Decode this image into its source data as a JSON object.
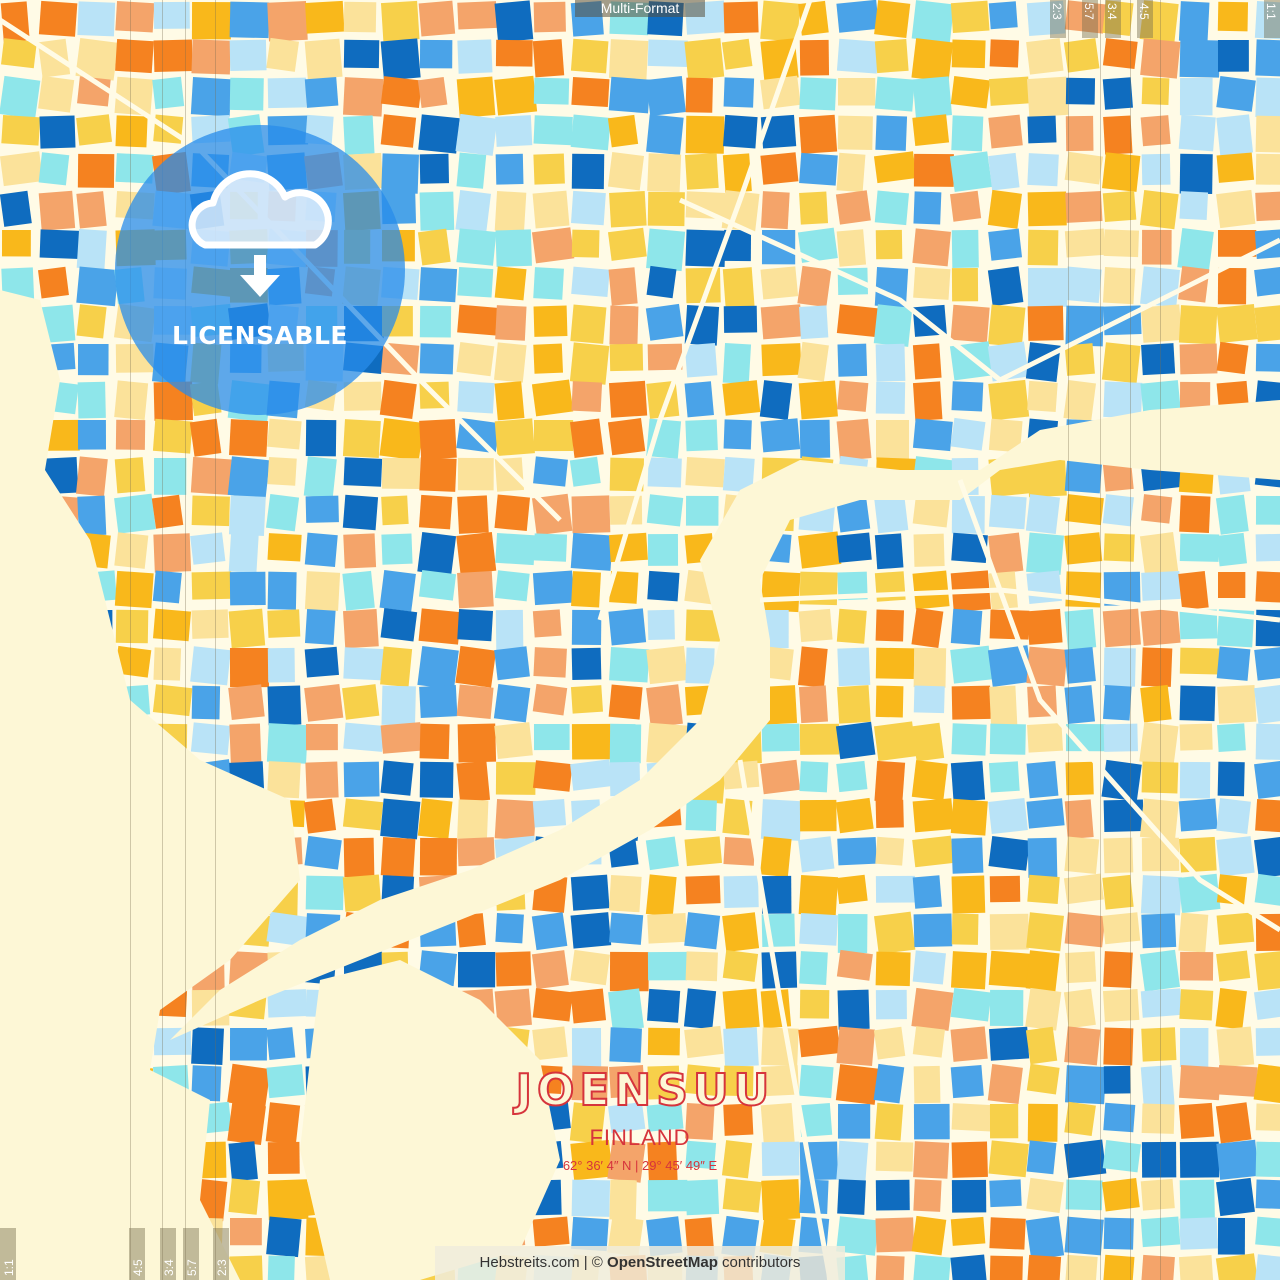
{
  "format_label": "Multi-Format",
  "ratios_top": [
    "2:3",
    "5:7",
    "3:4",
    "4:5",
    "1:1"
  ],
  "ratios_bottom": [
    "1:1",
    "4:5",
    "3:4",
    "5:7",
    "2:3"
  ],
  "badge": {
    "label": "LICENSABLE",
    "icon": "cloud-download-icon"
  },
  "title": {
    "city": "JOENSUU",
    "country": "FINLAND",
    "coordinates": "62°  36′  4″ N  |  29°  45′  49″ E"
  },
  "attribution": {
    "site": "Hebstreits.com",
    "separator": " | © ",
    "osm": "OpenStreetMap",
    "suffix": " contributors"
  },
  "colors": {
    "water": "#fdf7d6",
    "title": "#d6343c",
    "palette": [
      "#f7d04a",
      "#f9b81b",
      "#f58220",
      "#f4a46a",
      "#0f6cbf",
      "#4aa3e8",
      "#b9e3f7",
      "#8ee6ea",
      "#fbe29a"
    ]
  }
}
